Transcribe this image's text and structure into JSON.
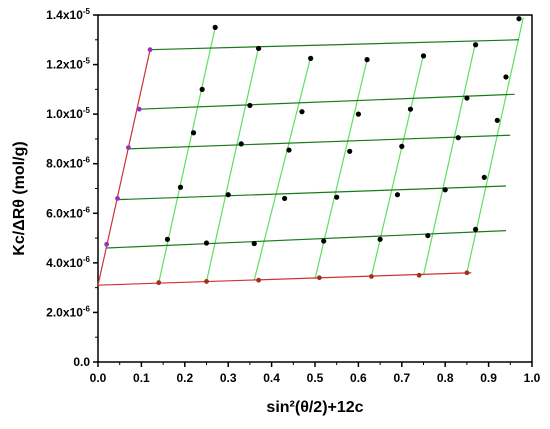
{
  "chart_data": {
    "type": "scatter",
    "xlabel": "sin²(θ/2)+12c",
    "ylabel": "Kc/ΔRθ   (mol/g)",
    "xlim": [
      0.0,
      1.0
    ],
    "ylim": [
      0.0,
      1.4e-05
    ],
    "xticks": [
      0.0,
      0.1,
      0.2,
      0.3,
      0.4,
      0.5,
      0.6,
      0.7,
      0.8,
      0.9,
      1.0
    ],
    "xtick_labels": [
      "0.0",
      "0.1",
      "0.2",
      "0.3",
      "0.4",
      "0.5",
      "0.6",
      "0.7",
      "0.8",
      "0.9",
      "1.0"
    ],
    "yticks": [
      0.0,
      2e-06,
      4e-06,
      6e-06,
      8e-06,
      1e-05,
      1.2e-05,
      1.4e-05
    ],
    "ytick_labels": [
      {
        "mantissa": "0.0",
        "exp": ""
      },
      {
        "mantissa": "2.0x10",
        "exp": "-6"
      },
      {
        "mantissa": "4.0x10",
        "exp": "-6"
      },
      {
        "mantissa": "6.0x10",
        "exp": "-6"
      },
      {
        "mantissa": "8.0x10",
        "exp": "-6"
      },
      {
        "mantissa": "1.0x10",
        "exp": "-5"
      },
      {
        "mantissa": "1.2x10",
        "exp": "-5"
      },
      {
        "mantissa": "1.4x10",
        "exp": "-5"
      }
    ],
    "grid": false,
    "legend": false,
    "colors": {
      "concentration_lines": "#1a7a1a",
      "angle_lines": "#5ee05e",
      "zero_concentration_line": "#cc3333",
      "zero_angle_line": "#cc3333",
      "data_points": "#000000",
      "extrapolated_points": "#9b30c0"
    },
    "data_points": [
      [
        0.16,
        4.95e-06
      ],
      [
        0.25,
        4.8e-06
      ],
      [
        0.36,
        4.78e-06
      ],
      [
        0.52,
        4.88e-06
      ],
      [
        0.65,
        4.95e-06
      ],
      [
        0.76,
        5.1e-06
      ],
      [
        0.87,
        5.35e-06
      ],
      [
        0.19,
        7.05e-06
      ],
      [
        0.3,
        6.75e-06
      ],
      [
        0.43,
        6.6e-06
      ],
      [
        0.55,
        6.65e-06
      ],
      [
        0.69,
        6.75e-06
      ],
      [
        0.8,
        6.95e-06
      ],
      [
        0.89,
        7.45e-06
      ],
      [
        0.22,
        9.25e-06
      ],
      [
        0.33,
        8.8e-06
      ],
      [
        0.44,
        8.55e-06
      ],
      [
        0.58,
        8.5e-06
      ],
      [
        0.7,
        8.7e-06
      ],
      [
        0.83,
        9.05e-06
      ],
      [
        0.92,
        9.75e-06
      ],
      [
        0.24,
        1.1e-05
      ],
      [
        0.35,
        1.035e-05
      ],
      [
        0.47,
        1.01e-05
      ],
      [
        0.6,
        1e-05
      ],
      [
        0.72,
        1.02e-05
      ],
      [
        0.85,
        1.065e-05
      ],
      [
        0.94,
        1.15e-05
      ],
      [
        0.27,
        1.35e-05
      ],
      [
        0.37,
        1.265e-05
      ],
      [
        0.49,
        1.225e-05
      ],
      [
        0.62,
        1.22e-05
      ],
      [
        0.75,
        1.235e-05
      ],
      [
        0.87,
        1.28e-05
      ],
      [
        0.97,
        1.385e-05
      ]
    ],
    "extrapolated_zero_conc_points": [
      [
        0.14,
        3.2e-06
      ],
      [
        0.25,
        3.25e-06
      ],
      [
        0.37,
        3.3e-06
      ],
      [
        0.51,
        3.4e-06
      ],
      [
        0.63,
        3.45e-06
      ],
      [
        0.74,
        3.5e-06
      ],
      [
        0.85,
        3.6e-06
      ]
    ],
    "extrapolated_zero_angle_points": [
      [
        0.02,
        4.75e-06
      ],
      [
        0.045,
        6.6e-06
      ],
      [
        0.07,
        8.65e-06
      ],
      [
        0.095,
        1.02e-05
      ],
      [
        0.12,
        1.26e-05
      ]
    ],
    "concentration_lines": [
      [
        [
          0.02,
          4.6e-06
        ],
        [
          0.94,
          5.3e-06
        ]
      ],
      [
        [
          0.045,
          6.55e-06
        ],
        [
          0.94,
          7.1e-06
        ]
      ],
      [
        [
          0.07,
          8.6e-06
        ],
        [
          0.95,
          9.15e-06
        ]
      ],
      [
        [
          0.095,
          1.02e-05
        ],
        [
          0.96,
          1.08e-05
        ]
      ],
      [
        [
          0.12,
          1.26e-05
        ],
        [
          0.97,
          1.3e-05
        ]
      ]
    ],
    "angle_lines": [
      [
        [
          0.14,
          3.2e-06
        ],
        [
          0.27,
          1.35e-05
        ]
      ],
      [
        [
          0.25,
          3.25e-06
        ],
        [
          0.37,
          1.27e-05
        ]
      ],
      [
        [
          0.36,
          3.3e-06
        ],
        [
          0.49,
          1.23e-05
        ]
      ],
      [
        [
          0.5,
          3.35e-06
        ],
        [
          0.62,
          1.22e-05
        ]
      ],
      [
        [
          0.63,
          3.45e-06
        ],
        [
          0.75,
          1.24e-05
        ]
      ],
      [
        [
          0.75,
          3.5e-06
        ],
        [
          0.87,
          1.29e-05
        ]
      ],
      [
        [
          0.85,
          3.6e-06
        ],
        [
          0.98,
          1.39e-05
        ]
      ]
    ],
    "zero_concentration_line": [
      [
        0.0,
        3.1e-06
      ],
      [
        0.86,
        3.6e-06
      ]
    ],
    "zero_angle_line": [
      [
        0.0,
        3.1e-06
      ],
      [
        0.12,
        1.26e-05
      ]
    ]
  }
}
